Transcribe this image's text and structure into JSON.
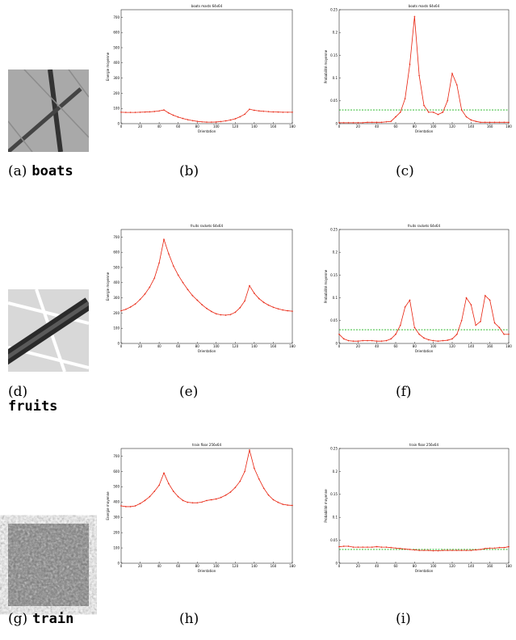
{
  "chart_data": [
    {
      "type": "line",
      "title": "boats masts 64x64",
      "x_label": "Orientation",
      "y_label": "Energie moyenne",
      "x": [
        0,
        5,
        10,
        15,
        20,
        25,
        30,
        35,
        40,
        45,
        50,
        55,
        60,
        65,
        70,
        75,
        80,
        85,
        90,
        95,
        100,
        105,
        110,
        115,
        120,
        125,
        130,
        135,
        140,
        145,
        150,
        155,
        160,
        165,
        170,
        175,
        180
      ],
      "xlim": [
        0,
        180
      ],
      "xticks": [
        0,
        20,
        40,
        60,
        80,
        100,
        120,
        140,
        160,
        180
      ],
      "ylim": [
        0,
        750
      ],
      "yticks": [
        0,
        100,
        200,
        300,
        400,
        500,
        600,
        700
      ],
      "markers": true,
      "series": [
        {
          "color": "#e8200c",
          "values": [
            75,
            74,
            74,
            74,
            75,
            76,
            78,
            80,
            84,
            90,
            70,
            55,
            43,
            34,
            26,
            20,
            15,
            12,
            10,
            10,
            11,
            14,
            18,
            24,
            32,
            45,
            62,
            95,
            88,
            84,
            81,
            79,
            77,
            76,
            75,
            75,
            75
          ]
        }
      ]
    },
    {
      "type": "line",
      "title": "boats masts 64x64",
      "x_label": "Orientation",
      "y_label": "Probabilité moyenne",
      "x": [
        0,
        5,
        10,
        15,
        20,
        25,
        30,
        35,
        40,
        45,
        50,
        55,
        60,
        65,
        70,
        75,
        80,
        85,
        90,
        95,
        100,
        105,
        110,
        115,
        120,
        125,
        130,
        135,
        140,
        145,
        150,
        155,
        160,
        165,
        170,
        175,
        180
      ],
      "xlim": [
        0,
        180
      ],
      "xticks": [
        0,
        20,
        40,
        60,
        80,
        100,
        120,
        140,
        160,
        180
      ],
      "ylim": [
        0,
        0.25
      ],
      "yticks": [
        0,
        0.05,
        0.1,
        0.15,
        0.2,
        0.25
      ],
      "markers": true,
      "threshold": {
        "value": 0.03,
        "color": "#10b010",
        "style": "dashed"
      },
      "series": [
        {
          "color": "#e8200c",
          "values": [
            0.002,
            0.002,
            0.002,
            0.002,
            0.002,
            0.002,
            0.003,
            0.003,
            0.003,
            0.003,
            0.004,
            0.005,
            0.015,
            0.025,
            0.055,
            0.13,
            0.235,
            0.105,
            0.04,
            0.025,
            0.025,
            0.02,
            0.025,
            0.05,
            0.11,
            0.085,
            0.03,
            0.015,
            0.008,
            0.005,
            0.003,
            0.003,
            0.003,
            0.003,
            0.003,
            0.003,
            0.003
          ]
        }
      ]
    },
    {
      "type": "line",
      "title": "fruits rackets 64x64",
      "x_label": "Orientation",
      "y_label": "Energie moyenne",
      "x": [
        0,
        5,
        10,
        15,
        20,
        25,
        30,
        35,
        40,
        45,
        50,
        55,
        60,
        65,
        70,
        75,
        80,
        85,
        90,
        95,
        100,
        105,
        110,
        115,
        120,
        125,
        130,
        135,
        140,
        145,
        150,
        155,
        160,
        165,
        170,
        175,
        180
      ],
      "xlim": [
        0,
        180
      ],
      "xticks": [
        0,
        20,
        40,
        60,
        80,
        100,
        120,
        140,
        160,
        180
      ],
      "ylim": [
        0,
        750
      ],
      "yticks": [
        0,
        100,
        200,
        300,
        400,
        500,
        600,
        700
      ],
      "markers": true,
      "series": [
        {
          "color": "#e8200c",
          "values": [
            215,
            225,
            240,
            260,
            290,
            325,
            370,
            430,
            530,
            685,
            590,
            510,
            450,
            400,
            355,
            315,
            285,
            255,
            230,
            210,
            195,
            188,
            186,
            190,
            205,
            235,
            280,
            380,
            330,
            295,
            270,
            252,
            238,
            228,
            220,
            215,
            212
          ]
        }
      ]
    },
    {
      "type": "line",
      "title": "fruits rackets 64x64",
      "x_label": "Orientation",
      "y_label": "Probabilité moyenne",
      "x": [
        0,
        5,
        10,
        15,
        20,
        25,
        30,
        35,
        40,
        45,
        50,
        55,
        60,
        65,
        70,
        75,
        80,
        85,
        90,
        95,
        100,
        105,
        110,
        115,
        120,
        125,
        130,
        135,
        140,
        145,
        150,
        155,
        160,
        165,
        170,
        175,
        180
      ],
      "xlim": [
        0,
        180
      ],
      "xticks": [
        0,
        20,
        40,
        60,
        80,
        100,
        120,
        140,
        160,
        180
      ],
      "ylim": [
        0,
        0.25
      ],
      "yticks": [
        0,
        0.05,
        0.1,
        0.15,
        0.2,
        0.25
      ],
      "markers": true,
      "threshold": {
        "value": 0.03,
        "color": "#10b010",
        "style": "dashed"
      },
      "series": [
        {
          "color": "#e8200c",
          "values": [
            0.02,
            0.01,
            0.006,
            0.005,
            0.005,
            0.006,
            0.006,
            0.006,
            0.005,
            0.005,
            0.006,
            0.01,
            0.02,
            0.04,
            0.08,
            0.095,
            0.035,
            0.02,
            0.012,
            0.008,
            0.006,
            0.005,
            0.006,
            0.007,
            0.01,
            0.02,
            0.05,
            0.1,
            0.085,
            0.04,
            0.048,
            0.105,
            0.095,
            0.045,
            0.035,
            0.02,
            0.02
          ]
        }
      ]
    },
    {
      "type": "line",
      "title": "train floor 256x64",
      "x_label": "Orientation",
      "y_label": "Energie moyenne",
      "x": [
        0,
        5,
        10,
        15,
        20,
        25,
        30,
        35,
        40,
        45,
        50,
        55,
        60,
        65,
        70,
        75,
        80,
        85,
        90,
        95,
        100,
        105,
        110,
        115,
        120,
        125,
        130,
        135,
        140,
        145,
        150,
        155,
        160,
        165,
        170,
        175,
        180
      ],
      "xlim": [
        0,
        180
      ],
      "xticks": [
        0,
        20,
        40,
        60,
        80,
        100,
        120,
        140,
        160,
        180
      ],
      "ylim": [
        0,
        750
      ],
      "yticks": [
        0,
        100,
        200,
        300,
        400,
        500,
        600,
        700
      ],
      "markers": true,
      "series": [
        {
          "color": "#e8200c",
          "values": [
            375,
            370,
            370,
            375,
            390,
            410,
            435,
            470,
            510,
            590,
            520,
            470,
            435,
            410,
            398,
            395,
            395,
            400,
            410,
            415,
            420,
            430,
            445,
            465,
            495,
            535,
            600,
            740,
            620,
            550,
            490,
            445,
            415,
            398,
            385,
            380,
            378
          ]
        }
      ]
    },
    {
      "type": "line",
      "title": "train floor 256x64",
      "x_label": "Orientation",
      "y_label": "Probabilité moyenne",
      "x": [
        0,
        5,
        10,
        15,
        20,
        25,
        30,
        35,
        40,
        45,
        50,
        55,
        60,
        65,
        70,
        75,
        80,
        85,
        90,
        95,
        100,
        105,
        110,
        115,
        120,
        125,
        130,
        135,
        140,
        145,
        150,
        155,
        160,
        165,
        170,
        175,
        180
      ],
      "xlim": [
        0,
        180
      ],
      "xticks": [
        0,
        20,
        40,
        60,
        80,
        100,
        120,
        140,
        160,
        180
      ],
      "ylim": [
        0,
        0.25
      ],
      "yticks": [
        0,
        0.05,
        0.1,
        0.15,
        0.2,
        0.25
      ],
      "markers": true,
      "threshold": {
        "value": 0.03,
        "color": "#10b010",
        "style": "dashed"
      },
      "series": [
        {
          "color": "#e8200c",
          "values": [
            0.036,
            0.037,
            0.037,
            0.035,
            0.035,
            0.035,
            0.035,
            0.035,
            0.036,
            0.035,
            0.035,
            0.034,
            0.033,
            0.032,
            0.031,
            0.03,
            0.029,
            0.028,
            0.028,
            0.028,
            0.027,
            0.027,
            0.028,
            0.028,
            0.028,
            0.028,
            0.028,
            0.028,
            0.028,
            0.029,
            0.03,
            0.032,
            0.033,
            0.033,
            0.034,
            0.034,
            0.036
          ]
        }
      ]
    }
  ],
  "captions": [
    {
      "label": "(a)",
      "name": "boats"
    },
    {
      "label": "(b)"
    },
    {
      "label": "(c)"
    },
    {
      "label": "(d)",
      "name": "fruits"
    },
    {
      "label": "(e)"
    },
    {
      "label": "(f)"
    },
    {
      "label": "(g)",
      "name": "train"
    },
    {
      "label": "(h)"
    },
    {
      "label": "(i)"
    }
  ]
}
